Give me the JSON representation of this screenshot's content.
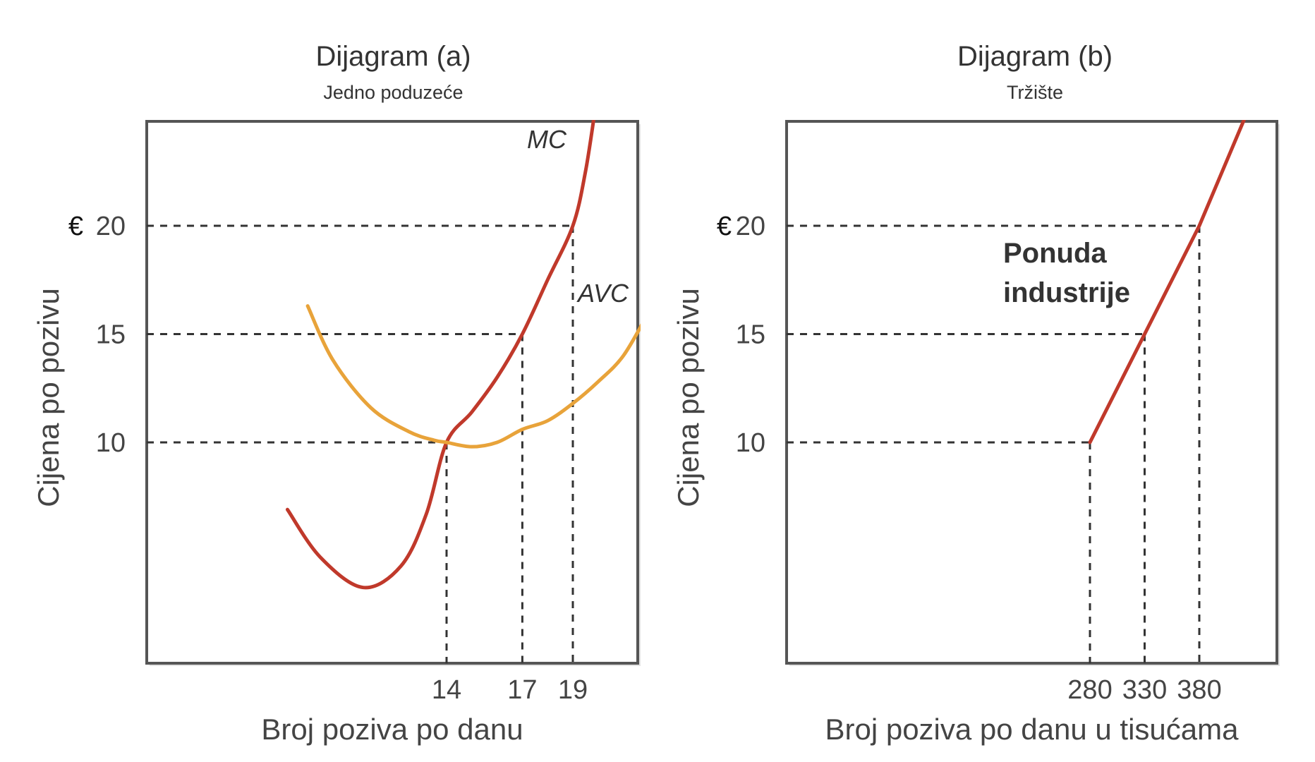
{
  "chart_data": [
    {
      "type": "line",
      "title": "Dijagram (a)",
      "subtitle": "Jedno poduzeće",
      "xlabel": "Broj poziva po danu",
      "ylabel": "Cijena po pozivu",
      "currency": "€",
      "yticks": [
        10,
        15,
        20
      ],
      "xticks": [
        14,
        17,
        19
      ],
      "xlim": [
        6,
        22
      ],
      "ylim": [
        0,
        25.5
      ],
      "series": [
        {
          "name": "MC",
          "color": "#c0392b",
          "x": [
            7.7,
            9.0,
            10.7,
            12.2,
            13.2,
            14.0,
            15.0,
            16.0,
            17.0,
            18.0,
            19.0,
            19.5,
            19.9
          ],
          "y": [
            6.9,
            4.7,
            3.3,
            4.3,
            6.7,
            10.0,
            11.4,
            13.0,
            15.0,
            17.5,
            20.0,
            22.5,
            25.5
          ]
        },
        {
          "name": "AVC",
          "color": "#e8a33a",
          "x": [
            8.5,
            9.5,
            11.0,
            12.5,
            13.5,
            14.0,
            15.0,
            16.0,
            17.0,
            18.0,
            19.0,
            20.0,
            21.0,
            22.0
          ],
          "y": [
            16.3,
            13.8,
            11.6,
            10.5,
            10.1,
            10.0,
            9.8,
            10.0,
            10.6,
            11.0,
            11.8,
            12.8,
            14.0,
            16.0
          ]
        }
      ],
      "reference_points": [
        {
          "x": 14,
          "y": 10
        },
        {
          "x": 17,
          "y": 15
        },
        {
          "x": 19,
          "y": 20
        }
      ]
    },
    {
      "type": "line",
      "title": "Dijagram (b)",
      "subtitle": "Tržište",
      "xlabel": "Broj poziva po danu u tisućama",
      "ylabel": "Cijena po pozivu",
      "currency": "€",
      "yticks": [
        10,
        15,
        20
      ],
      "xticks": [
        280,
        330,
        380
      ],
      "xlim": [
        0,
        460
      ],
      "ylim": [
        0,
        25.5
      ],
      "series": [
        {
          "name": "Ponuda industrije",
          "color": "#c0392b",
          "x": [
            280,
            330,
            380,
            426
          ],
          "y": [
            10,
            15,
            20,
            25.5
          ]
        }
      ],
      "annotation": [
        "Ponuda",
        "industrije"
      ],
      "reference_points": [
        {
          "x": 280,
          "y": 10
        },
        {
          "x": 330,
          "y": 15
        },
        {
          "x": 380,
          "y": 20
        }
      ]
    }
  ]
}
